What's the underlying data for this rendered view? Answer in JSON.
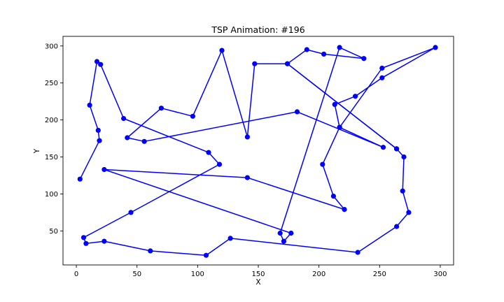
{
  "chart_data": {
    "type": "line",
    "title": "TSP Animation: #196",
    "xlabel": "X",
    "ylabel": "Y",
    "xlim": [
      -11,
      311
    ],
    "ylim": [
      4,
      313
    ],
    "xticks": [
      0,
      50,
      100,
      150,
      200,
      250,
      300
    ],
    "yticks": [
      50,
      100,
      150,
      200,
      250,
      300
    ],
    "grid": false,
    "line_color": "#0000ff",
    "marker_color": "#0000ff",
    "series": [
      {
        "points": [
          [
            3,
            120
          ],
          [
            19,
            172
          ],
          [
            18,
            186
          ],
          [
            11,
            220
          ],
          [
            17,
            279
          ],
          [
            20,
            275
          ],
          [
            39,
            202
          ],
          [
            109,
            156
          ],
          [
            118,
            140
          ],
          [
            45,
            75
          ],
          [
            6,
            41
          ],
          [
            8,
            33
          ],
          [
            23,
            36
          ],
          [
            61,
            23
          ],
          [
            107,
            17
          ],
          [
            127,
            40
          ],
          [
            232,
            21
          ],
          [
            264,
            56
          ],
          [
            274,
            75
          ],
          [
            269,
            104
          ],
          [
            270,
            150
          ],
          [
            264,
            161
          ],
          [
            174,
            276
          ],
          [
            147,
            276
          ],
          [
            141,
            177
          ],
          [
            120,
            294
          ],
          [
            96,
            205
          ],
          [
            70,
            216
          ],
          [
            42,
            176
          ],
          [
            56,
            171
          ],
          [
            182,
            211
          ],
          [
            253,
            163
          ],
          [
            217,
            190
          ],
          [
            213,
            221
          ],
          [
            230,
            232
          ],
          [
            252,
            257
          ],
          [
            296,
            298
          ],
          [
            252,
            270
          ],
          [
            217,
            190
          ],
          [
            203,
            140
          ],
          [
            212,
            97
          ],
          [
            221,
            79
          ],
          [
            141,
            122
          ],
          [
            23,
            133
          ],
          [
            177,
            47
          ],
          [
            171,
            36
          ],
          [
            168,
            47
          ],
          [
            217,
            298
          ],
          [
            237,
            283
          ],
          [
            204,
            289
          ],
          [
            190,
            295
          ],
          [
            174,
            276
          ],
          [
            264,
            161
          ]
        ]
      }
    ]
  }
}
